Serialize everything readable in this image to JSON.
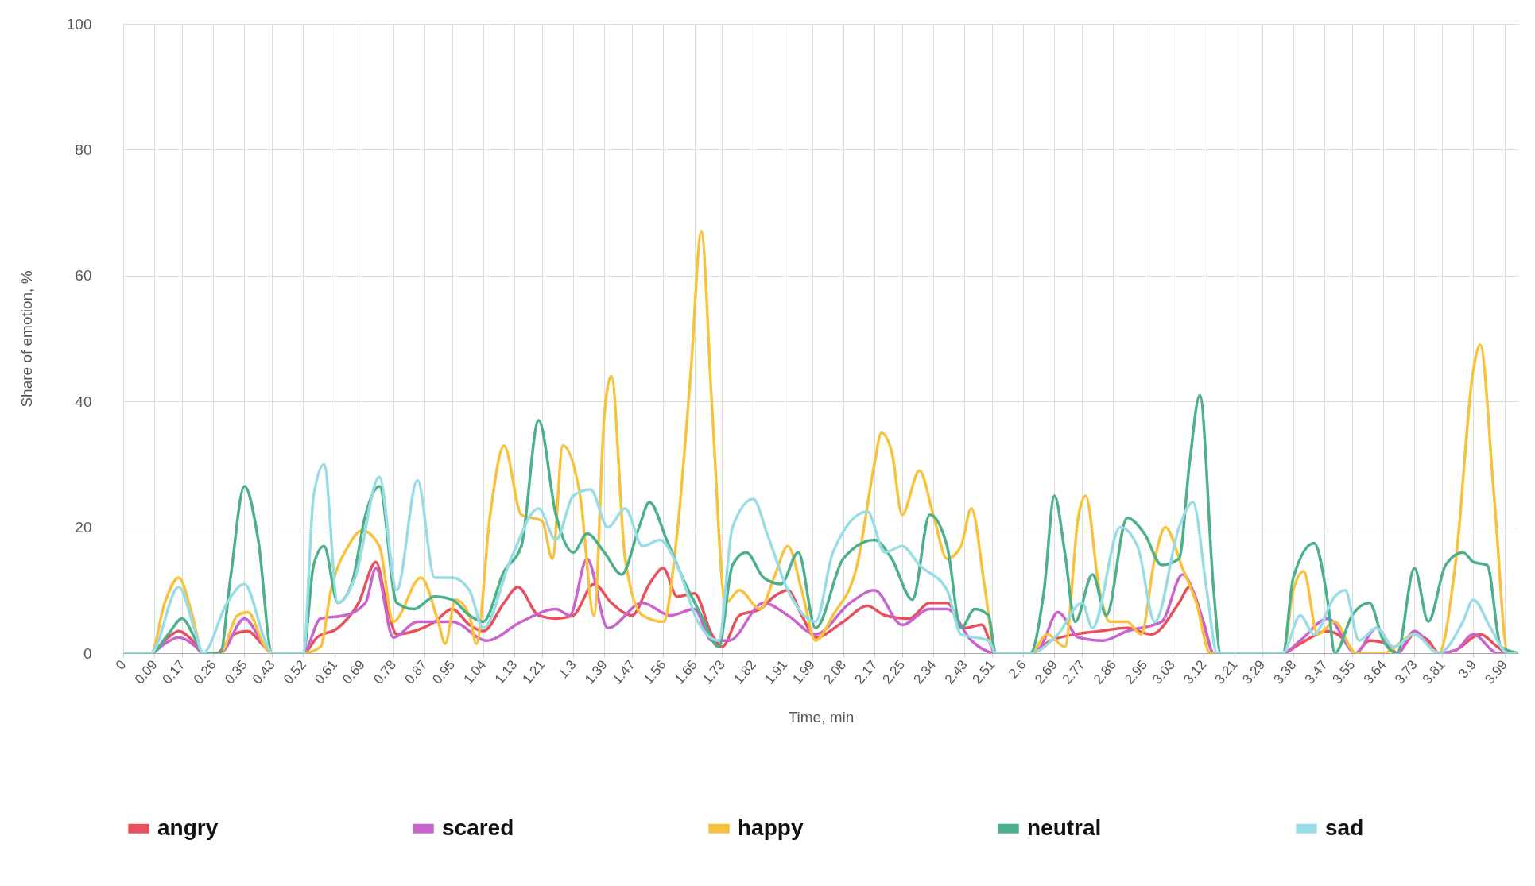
{
  "chart_data": {
    "type": "line",
    "xlabel": "Time, min",
    "ylabel": "Share of emotion, %",
    "xlim": [
      0,
      4.03
    ],
    "ylim": [
      0,
      100
    ],
    "xticks": [
      0,
      0.09,
      0.17,
      0.26,
      0.35,
      0.43,
      0.52,
      0.61,
      0.69,
      0.78,
      0.87,
      0.95,
      1.04,
      1.13,
      1.21,
      1.3,
      1.39,
      1.47,
      1.56,
      1.65,
      1.73,
      1.82,
      1.91,
      1.99,
      2.08,
      2.17,
      2.25,
      2.34,
      2.43,
      2.51,
      2.6,
      2.69,
      2.77,
      2.86,
      2.95,
      3.03,
      3.12,
      3.21,
      3.29,
      3.38,
      3.47,
      3.55,
      3.64,
      3.73,
      3.81,
      3.9,
      3.99
    ],
    "yticks": [
      0,
      20,
      40,
      60,
      80,
      100
    ],
    "grid": true,
    "legend": "bottom",
    "series": [
      {
        "name": "angry",
        "color": "#e8505b",
        "x": [
          0,
          0.08,
          0.13,
          0.16,
          0.2,
          0.23,
          0.27,
          0.32,
          0.36,
          0.4,
          0.43,
          0.52,
          0.56,
          0.62,
          0.68,
          0.73,
          0.76,
          0.79,
          0.84,
          0.9,
          0.95,
          1.0,
          1.04,
          1.1,
          1.14,
          1.2,
          1.25,
          1.3,
          1.36,
          1.41,
          1.47,
          1.52,
          1.56,
          1.6,
          1.65,
          1.7,
          1.73,
          1.78,
          1.84,
          1.88,
          1.92,
          1.96,
          2.0,
          2.08,
          2.15,
          2.2,
          2.27,
          2.33,
          2.38,
          2.43,
          2.48,
          2.52,
          2.62,
          2.68,
          2.75,
          2.82,
          2.9,
          2.97,
          3.05,
          3.08,
          3.12,
          3.15,
          3.35,
          3.4,
          3.48,
          3.53,
          3.56,
          3.6,
          3.65,
          3.68,
          3.73,
          3.77,
          3.8,
          3.85,
          3.92,
          3.97,
          4.0,
          4.03
        ],
        "values": [
          0,
          0,
          2.5,
          3.5,
          2,
          0,
          0,
          3,
          3.5,
          1.5,
          0,
          0,
          2.5,
          4,
          8,
          14.5,
          8,
          3,
          3.5,
          5,
          7,
          4.5,
          3.5,
          8,
          10.5,
          6,
          5.5,
          6,
          11,
          8,
          6,
          11,
          13.5,
          9,
          9.5,
          3,
          1,
          6,
          7,
          9,
          10,
          6,
          2.5,
          5,
          7.5,
          6,
          5.5,
          8,
          8,
          4,
          4.5,
          0,
          0,
          2,
          3,
          3.5,
          4,
          3,
          8,
          10.5,
          5,
          0,
          0,
          1.5,
          3.5,
          2,
          0,
          2,
          1.5,
          0,
          3,
          2,
          0,
          0.5,
          3,
          1,
          0,
          0
        ]
      },
      {
        "name": "scared",
        "color": "#c964cf",
        "x": [
          0,
          0.08,
          0.12,
          0.16,
          0.21,
          0.23,
          0.28,
          0.35,
          0.41,
          0.43,
          0.52,
          0.57,
          0.64,
          0.7,
          0.73,
          0.78,
          0.85,
          0.95,
          1.05,
          1.15,
          1.25,
          1.29,
          1.34,
          1.4,
          1.5,
          1.58,
          1.65,
          1.7,
          1.75,
          1.85,
          1.92,
          2.0,
          2.1,
          2.17,
          2.25,
          2.33,
          2.38,
          2.45,
          2.52,
          2.62,
          2.65,
          2.7,
          2.76,
          2.83,
          2.9,
          3.0,
          3.06,
          3.12,
          3.15,
          3.35,
          3.4,
          3.48,
          3.56,
          3.62,
          3.68,
          3.73,
          3.8,
          3.85,
          3.9,
          3.97,
          4.03
        ],
        "values": [
          0,
          0,
          1.5,
          2.5,
          1,
          0,
          0,
          5.5,
          1,
          0,
          0,
          5.5,
          6,
          8,
          13.5,
          2.5,
          5,
          5,
          2,
          5,
          7,
          6,
          15,
          4,
          8,
          6,
          7,
          2,
          2,
          8,
          6,
          3,
          8,
          10,
          4.5,
          7,
          7,
          2,
          0,
          0,
          1,
          6.5,
          2.5,
          2,
          3.5,
          5,
          12.5,
          5,
          0,
          0,
          2,
          5.5,
          0,
          4,
          0,
          3.5,
          0,
          0.5,
          3,
          0,
          0
        ]
      },
      {
        "name": "happy",
        "color": "#f8c23e",
        "x": [
          0,
          0.08,
          0.12,
          0.16,
          0.2,
          0.23,
          0.28,
          0.33,
          0.36,
          0.41,
          0.43,
          0.52,
          0.57,
          0.6,
          0.65,
          0.69,
          0.74,
          0.78,
          0.86,
          0.91,
          0.93,
          0.96,
          1.0,
          1.02,
          1.06,
          1.1,
          1.15,
          1.21,
          1.24,
          1.27,
          1.32,
          1.36,
          1.39,
          1.41,
          1.45,
          1.5,
          1.56,
          1.6,
          1.64,
          1.67,
          1.7,
          1.74,
          1.78,
          1.84,
          1.88,
          1.92,
          1.96,
          2.0,
          2.05,
          2.12,
          2.17,
          2.19,
          2.22,
          2.25,
          2.3,
          2.34,
          2.38,
          2.42,
          2.45,
          2.49,
          2.52,
          2.62,
          2.67,
          2.72,
          2.76,
          2.78,
          2.82,
          2.85,
          2.9,
          2.94,
          2.98,
          3.01,
          3.06,
          3.1,
          3.14,
          3.35,
          3.38,
          3.41,
          3.45,
          3.5,
          3.56,
          3.64,
          3.73,
          3.8,
          3.85,
          3.9,
          3.92,
          3.96,
          4.0,
          4.03
        ],
        "values": [
          0,
          0,
          8,
          12,
          6,
          0,
          0,
          6,
          6.5,
          1,
          0,
          0,
          1,
          10,
          17,
          19.5,
          17,
          5,
          12,
          5,
          1.5,
          8.5,
          6,
          1.5,
          22,
          33,
          22,
          21,
          15,
          33,
          25,
          6,
          38,
          44,
          15,
          6,
          5,
          19,
          45,
          67,
          40,
          8,
          10,
          7,
          12,
          17,
          10,
          2,
          6,
          14,
          30,
          35,
          32,
          22,
          29,
          22,
          15,
          17,
          23,
          10,
          0,
          0,
          3,
          1,
          22,
          25,
          10,
          5,
          5,
          3,
          15,
          20,
          13.5,
          8,
          0,
          0,
          10,
          13,
          3,
          5,
          0,
          0,
          3,
          0,
          15,
          45,
          49,
          25,
          0,
          0
        ]
      },
      {
        "name": "neutral",
        "color": "#4cb08b",
        "x": [
          0,
          0.08,
          0.13,
          0.17,
          0.21,
          0.23,
          0.28,
          0.31,
          0.35,
          0.39,
          0.43,
          0.52,
          0.55,
          0.58,
          0.62,
          0.66,
          0.7,
          0.74,
          0.79,
          0.84,
          0.9,
          0.95,
          1.0,
          1.04,
          1.1,
          1.15,
          1.2,
          1.25,
          1.3,
          1.34,
          1.39,
          1.44,
          1.49,
          1.52,
          1.57,
          1.62,
          1.67,
          1.72,
          1.76,
          1.8,
          1.85,
          1.9,
          1.95,
          2.0,
          2.08,
          2.17,
          2.22,
          2.28,
          2.33,
          2.38,
          2.42,
          2.46,
          2.5,
          2.52,
          2.62,
          2.66,
          2.69,
          2.72,
          2.75,
          2.8,
          2.84,
          2.9,
          2.95,
          3.0,
          3.05,
          3.08,
          3.11,
          3.15,
          3.17,
          3.35,
          3.38,
          3.44,
          3.48,
          3.5,
          3.55,
          3.6,
          3.64,
          3.68,
          3.73,
          3.77,
          3.82,
          3.87,
          3.9,
          3.94,
          3.98,
          4.03
        ],
        "values": [
          0,
          0,
          3,
          5.5,
          2,
          0,
          0,
          12,
          26.5,
          18,
          0,
          0,
          14,
          17,
          8,
          11,
          22,
          26.5,
          8,
          7,
          9,
          8.5,
          6,
          5,
          13,
          17,
          37,
          22,
          16,
          19,
          16,
          12.5,
          20,
          24,
          18,
          11.5,
          6,
          1,
          14,
          16,
          12,
          11,
          16,
          4,
          15,
          18,
          15,
          8.5,
          22,
          17,
          4,
          7,
          6,
          0,
          0,
          10,
          25,
          16,
          5,
          12.5,
          6,
          21.5,
          19,
          14,
          15,
          30,
          41,
          10,
          0,
          0,
          12,
          17.5,
          8,
          0,
          6,
          8,
          2,
          0,
          13.5,
          5,
          14,
          16,
          14.5,
          14,
          1,
          0
        ]
      },
      {
        "name": "sad",
        "color": "#98dde6",
        "x": [
          0,
          0.08,
          0.16,
          0.21,
          0.23,
          0.3,
          0.35,
          0.41,
          0.43,
          0.52,
          0.55,
          0.58,
          0.62,
          0.67,
          0.74,
          0.79,
          0.85,
          0.9,
          0.95,
          1.0,
          1.04,
          1.12,
          1.2,
          1.25,
          1.3,
          1.35,
          1.4,
          1.45,
          1.5,
          1.55,
          1.6,
          1.66,
          1.72,
          1.76,
          1.82,
          1.86,
          1.92,
          2.0,
          2.05,
          2.15,
          2.2,
          2.25,
          2.3,
          2.38,
          2.42,
          2.5,
          2.52,
          2.62,
          2.7,
          2.77,
          2.8,
          2.88,
          2.93,
          2.98,
          3.05,
          3.09,
          3.13,
          3.16,
          3.35,
          3.4,
          3.44,
          3.5,
          3.53,
          3.57,
          3.62,
          3.67,
          3.73,
          3.8,
          3.87,
          3.9,
          3.95,
          4.0,
          4.03
        ],
        "values": [
          0,
          0,
          10.5,
          3,
          0,
          8,
          11,
          2,
          0,
          0,
          25,
          30,
          8,
          12,
          28,
          10,
          27.5,
          12,
          12,
          10,
          4,
          15,
          23,
          18,
          25,
          26,
          20,
          23,
          17,
          18,
          14,
          5,
          2,
          20,
          24.5,
          19,
          10,
          5,
          16,
          22.5,
          16,
          17,
          14,
          10,
          3,
          2,
          0,
          0,
          3,
          8,
          4,
          20,
          17,
          5,
          20,
          24,
          10,
          0,
          0,
          6,
          3,
          9,
          10,
          2,
          4,
          1,
          3,
          0,
          5,
          8.5,
          4,
          0,
          0
        ]
      }
    ]
  }
}
